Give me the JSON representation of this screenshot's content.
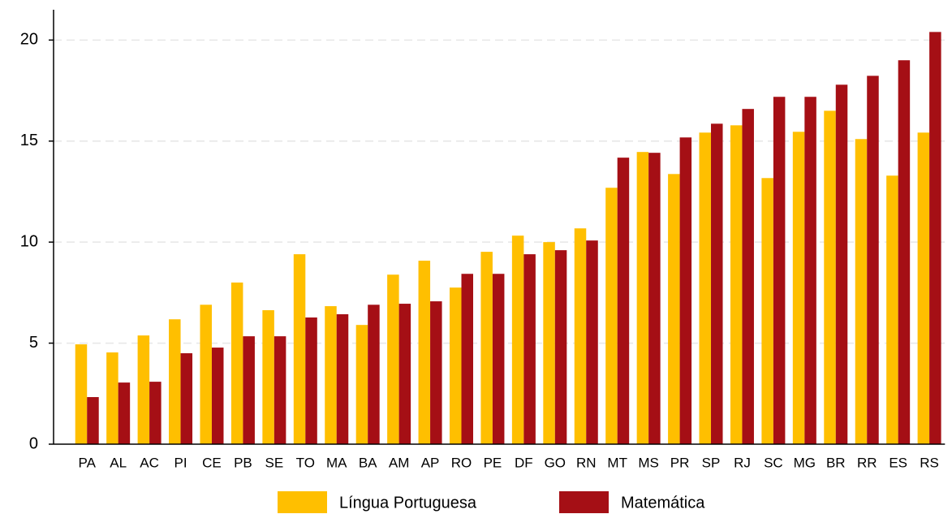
{
  "chart_data": {
    "type": "bar",
    "categories": [
      "PA",
      "AL",
      "AC",
      "PI",
      "CE",
      "PB",
      "SE",
      "TO",
      "MA",
      "BA",
      "AM",
      "AP",
      "RO",
      "PE",
      "DF",
      "GO",
      "RN",
      "MT",
      "MS",
      "PR",
      "SP",
      "RJ",
      "SC",
      "MG",
      "BR",
      "RR",
      "ES",
      "RS"
    ],
    "series": [
      {
        "name": "Língua Portuguesa",
        "color": "#ffbf00",
        "values": [
          4.94,
          4.54,
          5.38,
          6.18,
          6.9,
          8.0,
          6.63,
          9.4,
          6.83,
          5.9,
          8.39,
          9.08,
          7.75,
          9.52,
          10.32,
          10.0,
          10.68,
          12.69,
          14.46,
          13.37,
          15.42,
          15.78,
          13.17,
          15.46,
          16.5,
          15.1,
          13.29,
          15.42
        ]
      },
      {
        "name": "Matemática",
        "color": "#a50f15",
        "values": [
          2.33,
          3.05,
          3.09,
          4.5,
          4.78,
          5.34,
          5.34,
          6.27,
          6.43,
          6.9,
          6.95,
          7.07,
          8.43,
          8.43,
          9.4,
          9.6,
          10.08,
          14.18,
          14.42,
          15.18,
          15.86,
          16.59,
          17.19,
          17.19,
          17.79,
          18.23,
          19.0,
          20.4
        ]
      }
    ],
    "ylim": [
      0,
      21.5
    ],
    "yticks": [
      0,
      5,
      10,
      15,
      20
    ],
    "grid": true,
    "legend": "bottom"
  }
}
